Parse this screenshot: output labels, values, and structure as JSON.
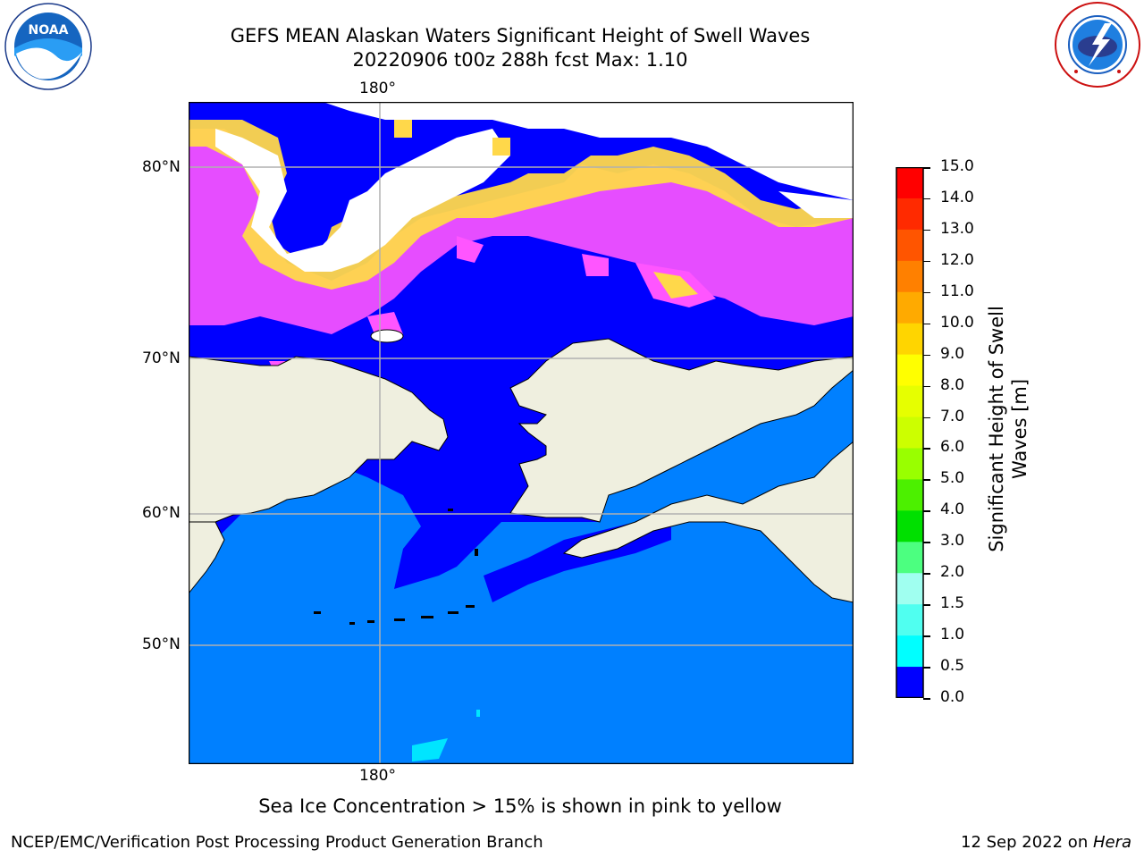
{
  "header": {
    "title_line1": "GEFS MEAN Alaskan Waters Significant Height of Swell Waves",
    "title_line2": "20220906 t00z 288h fcst   Max: 1.10"
  },
  "logos": {
    "left": {
      "icon": "noaa-logo",
      "text": "NOAA",
      "ring_text": "NATIONAL OCEANIC AND ATMOSPHERIC ADMINISTRATION · U.S. DEPARTMENT OF COMMERCE"
    },
    "right": {
      "icon": "nws-logo",
      "ring_text": "NATIONAL WEATHER SERVICE"
    }
  },
  "map": {
    "lon_label_top": "180°",
    "lon_label_bottom": "180°",
    "lat_labels": [
      "80°N",
      "70°N",
      "60°N",
      "50°N"
    ],
    "colors": {
      "land": "#efefdf",
      "ocean_low": "#0000ff",
      "ocean_mid": "#0080ff",
      "ocean_high": "#00e5ff",
      "ice_pink": "#ff55ff",
      "ice_yellow": "#ffd84a",
      "gridline": "#b0b0b0"
    }
  },
  "colorbar": {
    "label": "Significant Height of Swell Waves [m]",
    "label_line1": "Significant Height of Swell",
    "label_line2": "Waves [m]",
    "ticks": [
      "15.0",
      "14.0",
      "13.0",
      "12.0",
      "11.0",
      "10.0",
      "9.0",
      "8.0",
      "7.0",
      "6.0",
      "5.0",
      "4.0",
      "3.0",
      "2.0",
      "1.5",
      "1.0",
      "0.5",
      "0.0"
    ],
    "colors_top_to_bottom": [
      "#ff0000",
      "#ff2a00",
      "#ff5500",
      "#ff8000",
      "#ffaa00",
      "#ffd500",
      "#ffff00",
      "#e6ff00",
      "#ccff00",
      "#99ff00",
      "#4cf000",
      "#00e000",
      "#4cff80",
      "#a0fff0",
      "#50fff0",
      "#00ffff",
      "#0080ff",
      "#0000ff"
    ]
  },
  "notes": {
    "ice_note": "Sea Ice Concentration > 15% is shown in pink to yellow"
  },
  "footer": {
    "left": "NCEP/EMC/Verification Post Processing Product Generation Branch",
    "right_prefix": "12 Sep 2022 on ",
    "right_machine": "Hera"
  }
}
